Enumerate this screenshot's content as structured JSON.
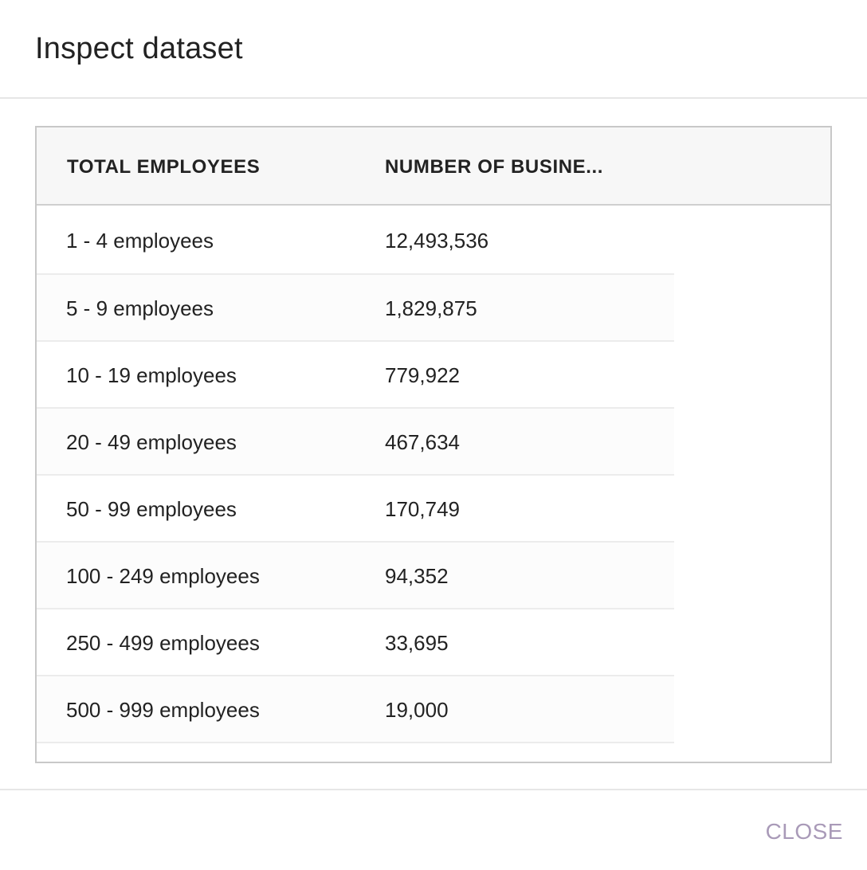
{
  "dialog": {
    "title": "Inspect dataset",
    "close_label": "CLOSE"
  },
  "table": {
    "columns": [
      "TOTAL EMPLOYEES",
      "NUMBER OF BUSINE..."
    ],
    "rows": [
      [
        "1 - 4 employees",
        "12,493,536"
      ],
      [
        "5 - 9 employees",
        "1,829,875"
      ],
      [
        "10 - 19 employees",
        "779,922"
      ],
      [
        "20 - 49 employees",
        "467,634"
      ],
      [
        "50 - 99 employees",
        "170,749"
      ],
      [
        "100 - 249 employees",
        "94,352"
      ],
      [
        "250 - 499 employees",
        "33,695"
      ],
      [
        "500 - 999 employees",
        "19,000"
      ]
    ]
  }
}
